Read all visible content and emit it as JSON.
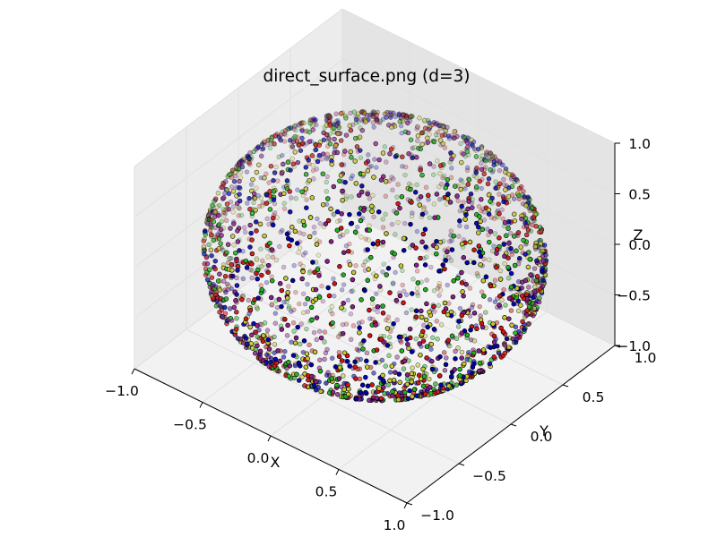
{
  "chart_data": {
    "type": "scatter",
    "projection": "3d",
    "title": "direct_surface.png (d=3)",
    "xlabel": "X",
    "ylabel": "Y",
    "zlabel": "Z",
    "xlim": [
      -1.0,
      1.0
    ],
    "ylim": [
      -1.0,
      1.0
    ],
    "zlim": [
      -1.0,
      1.0
    ],
    "xticks": [
      "−1.0",
      "−0.5",
      "0.0",
      "0.5",
      "1.0"
    ],
    "yticks": [
      "−1.0",
      "−0.5",
      "0.0",
      "0.5",
      "1.0"
    ],
    "zticks": [
      "−1.0",
      "−0.5",
      "0.0",
      "0.5",
      "1.0"
    ],
    "grid": true,
    "legend": "none",
    "surface": "unit sphere, x^2 + y^2 + z^2 = 1",
    "point_count_approx": 2400,
    "series": [
      {
        "color": "#0000b4",
        "edgecolor": "#000000"
      },
      {
        "color": "#d21414",
        "edgecolor": "#000000"
      },
      {
        "color": "#20b420",
        "edgecolor": "#000000"
      },
      {
        "color": "#c8c832",
        "edgecolor": "#000000"
      },
      {
        "color": "#8c1e8c",
        "edgecolor": "#000000"
      }
    ]
  },
  "colors": {
    "background": "#ffffff",
    "pane_left": "#ececec",
    "pane_right": "#e4e4e4",
    "pane_floor": "#f2f2f2",
    "grid": "#e0e0e0",
    "axis_line": "#000000"
  }
}
